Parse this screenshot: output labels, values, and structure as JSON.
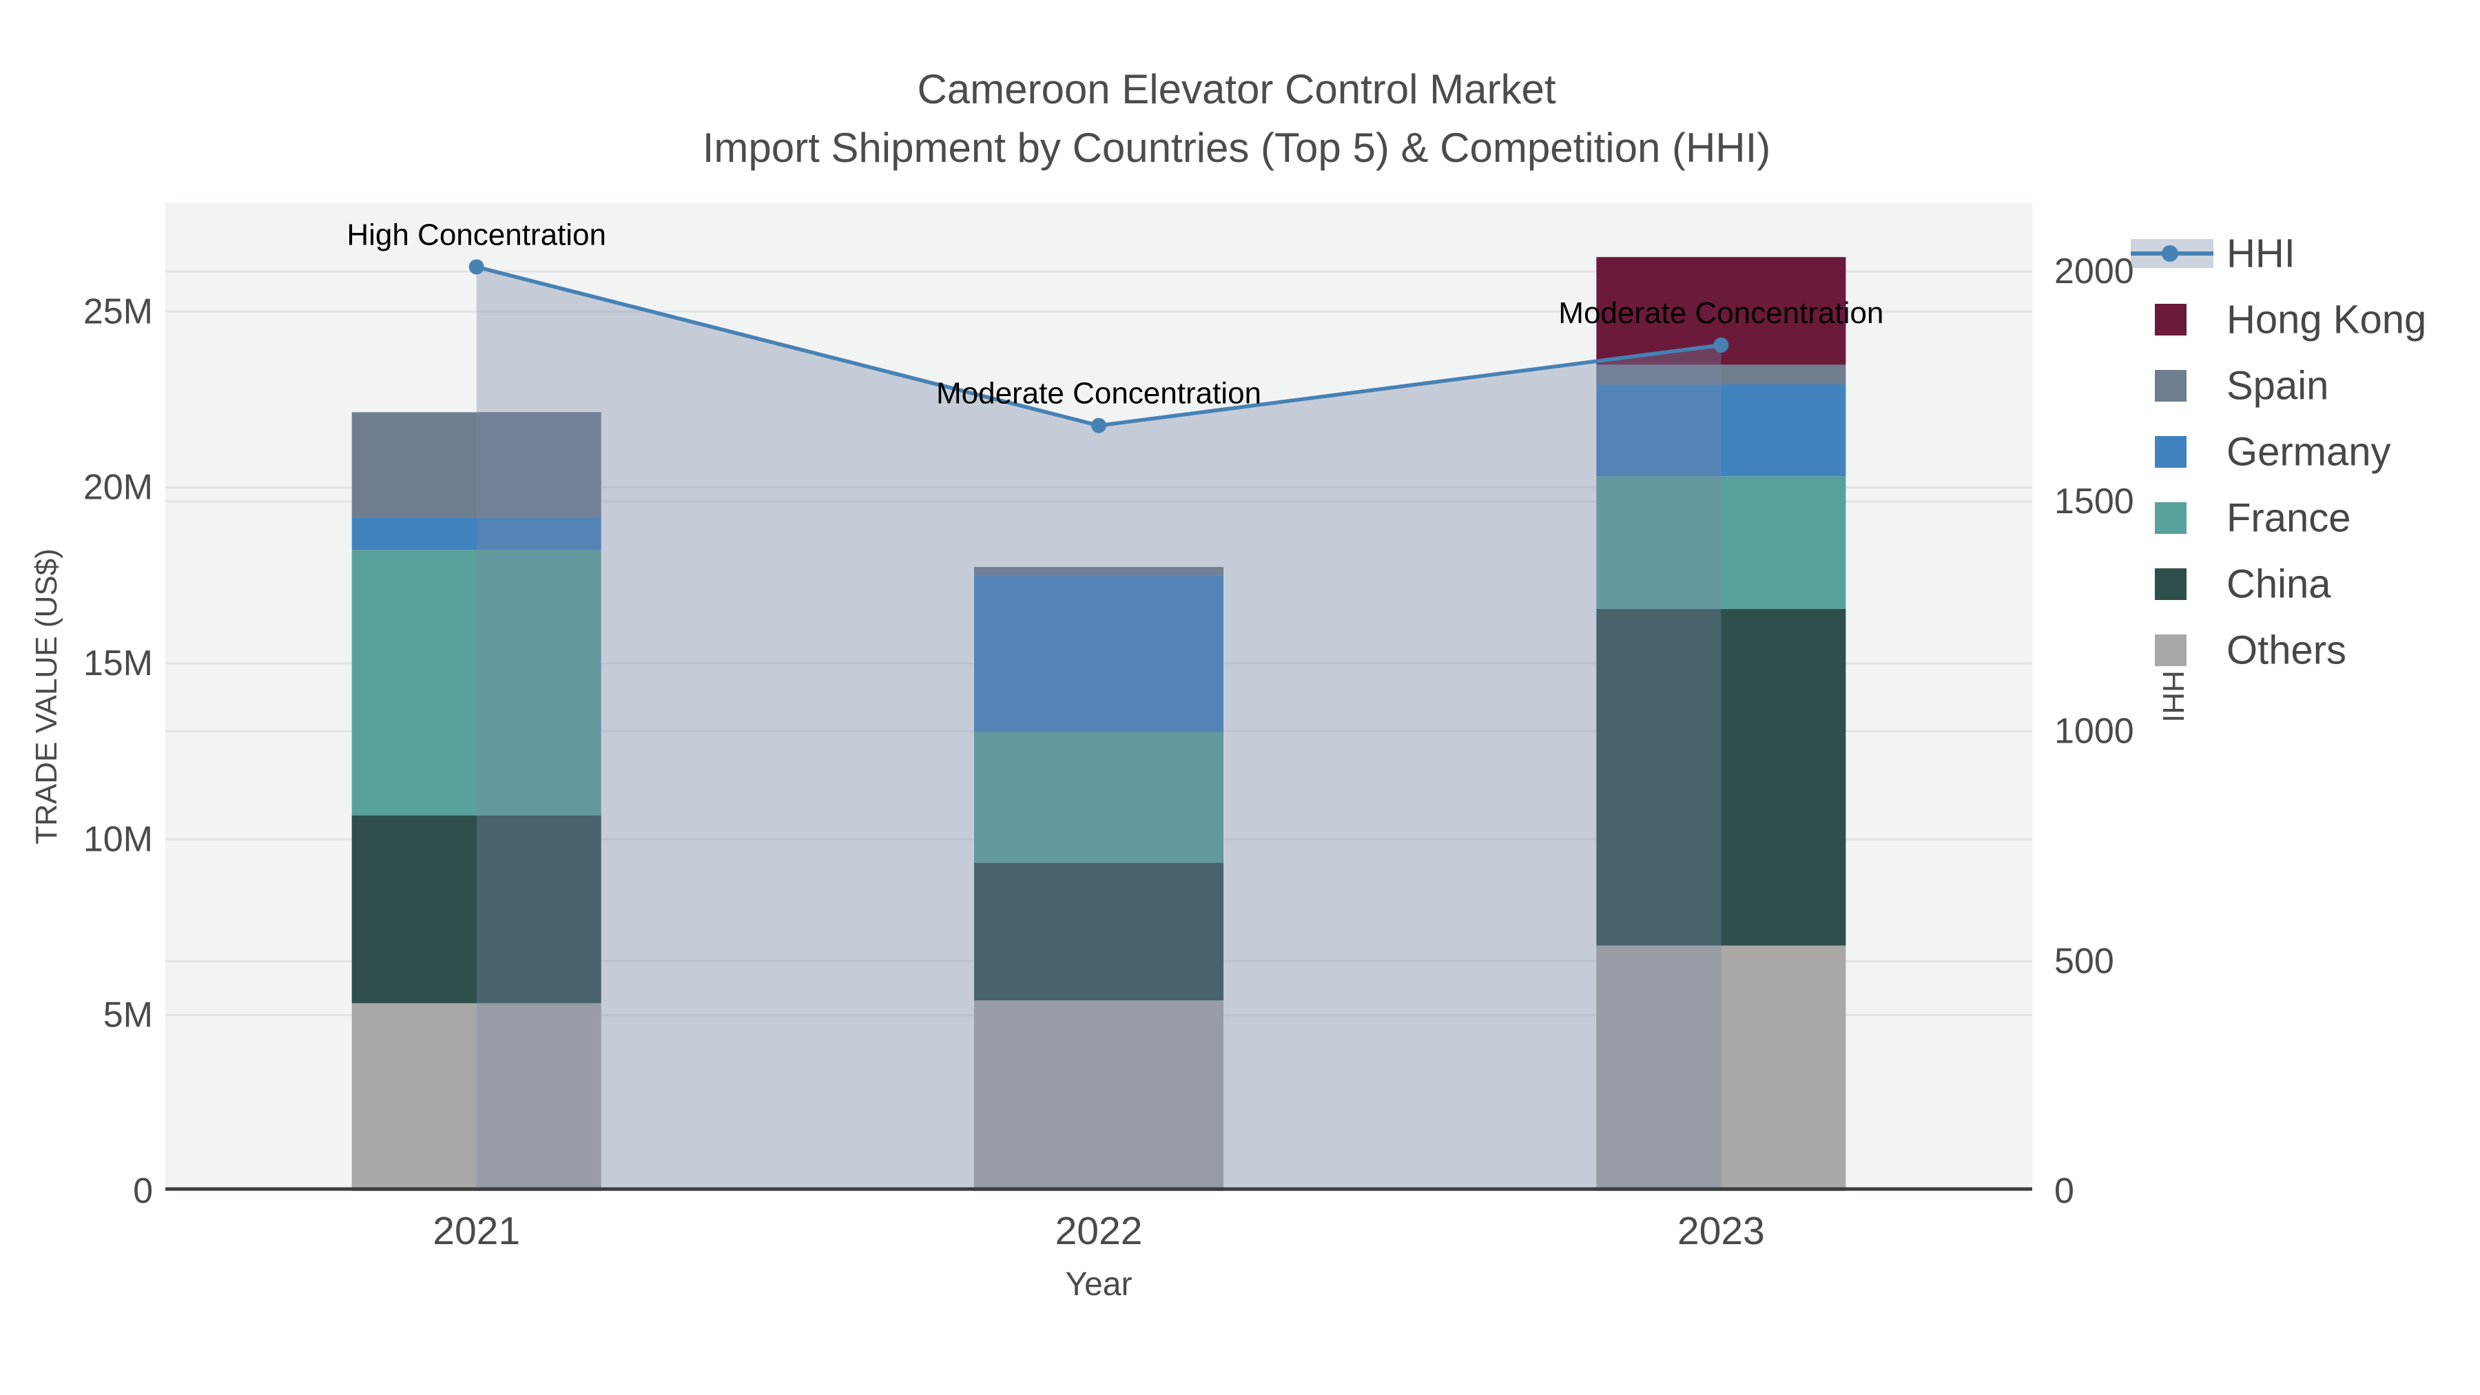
{
  "title": {
    "line1": "Cameroon Elevator Control Market",
    "line2": "Import Shipment by Countries (Top 5) & Competition (HHI)"
  },
  "chart_data": {
    "type": "combo: stacked bar (trade value) + line (HHI) with area fill",
    "categories": [
      "2021",
      "2022",
      "2023"
    ],
    "xlabel": "Year",
    "ylabel_left": "TRADE VALUE (US$)",
    "ylabel_right": "HHI",
    "value_unit": "US$ millions",
    "series": [
      {
        "name": "Others",
        "color": "#a9a8a6",
        "values": [
          5.34,
          5.42,
          6.98
        ]
      },
      {
        "name": "China",
        "color": "#2e4f4c",
        "values": [
          5.34,
          3.91,
          9.57
        ]
      },
      {
        "name": "France",
        "color": "#58a19c",
        "values": [
          7.55,
          3.72,
          3.77
        ]
      },
      {
        "name": "Germany",
        "color": "#4183bf",
        "values": [
          0.92,
          4.44,
          2.61
        ]
      },
      {
        "name": "Spain",
        "color": "#6f7e8f",
        "values": [
          2.99,
          0.25,
          0.56
        ]
      },
      {
        "name": "Hong Kong",
        "color": "#6b1a3b",
        "values": [
          0,
          0,
          3.06
        ]
      }
    ],
    "bar_totals": [
      22.14,
      17.74,
      26.55
    ],
    "hhi_line": {
      "name": "HHI",
      "color": "#4682b4",
      "values": [
        2010,
        1665,
        1840
      ]
    },
    "annotations": [
      "High Concentration",
      "Moderate Concentration",
      "Moderate Concentration"
    ],
    "yticks_left": {
      "values": [
        0,
        5,
        10,
        15,
        20,
        25
      ],
      "labels": [
        "0",
        "5M",
        "10M",
        "15M",
        "20M",
        "25M"
      ]
    },
    "yticks_right": {
      "values": [
        0,
        500,
        1000,
        1500,
        2000
      ],
      "labels": [
        "0",
        "500",
        "1000",
        "1500",
        "2000"
      ]
    },
    "ylim_left": [
      0,
      28.1
    ],
    "ylim_right": [
      0,
      2150
    ],
    "grid": true,
    "legend_position": "right",
    "colors": {
      "plot_bg": "#f2f3f3",
      "gridline": "#e3e4e6",
      "axis_line": "#3c3c3c",
      "area_fill": "rgba(120,135,165,0.36)",
      "annotation_text": "#000000"
    }
  },
  "legend": {
    "order": [
      "HHI",
      "Hong Kong",
      "Spain",
      "Germany",
      "France",
      "China",
      "Others"
    ]
  }
}
